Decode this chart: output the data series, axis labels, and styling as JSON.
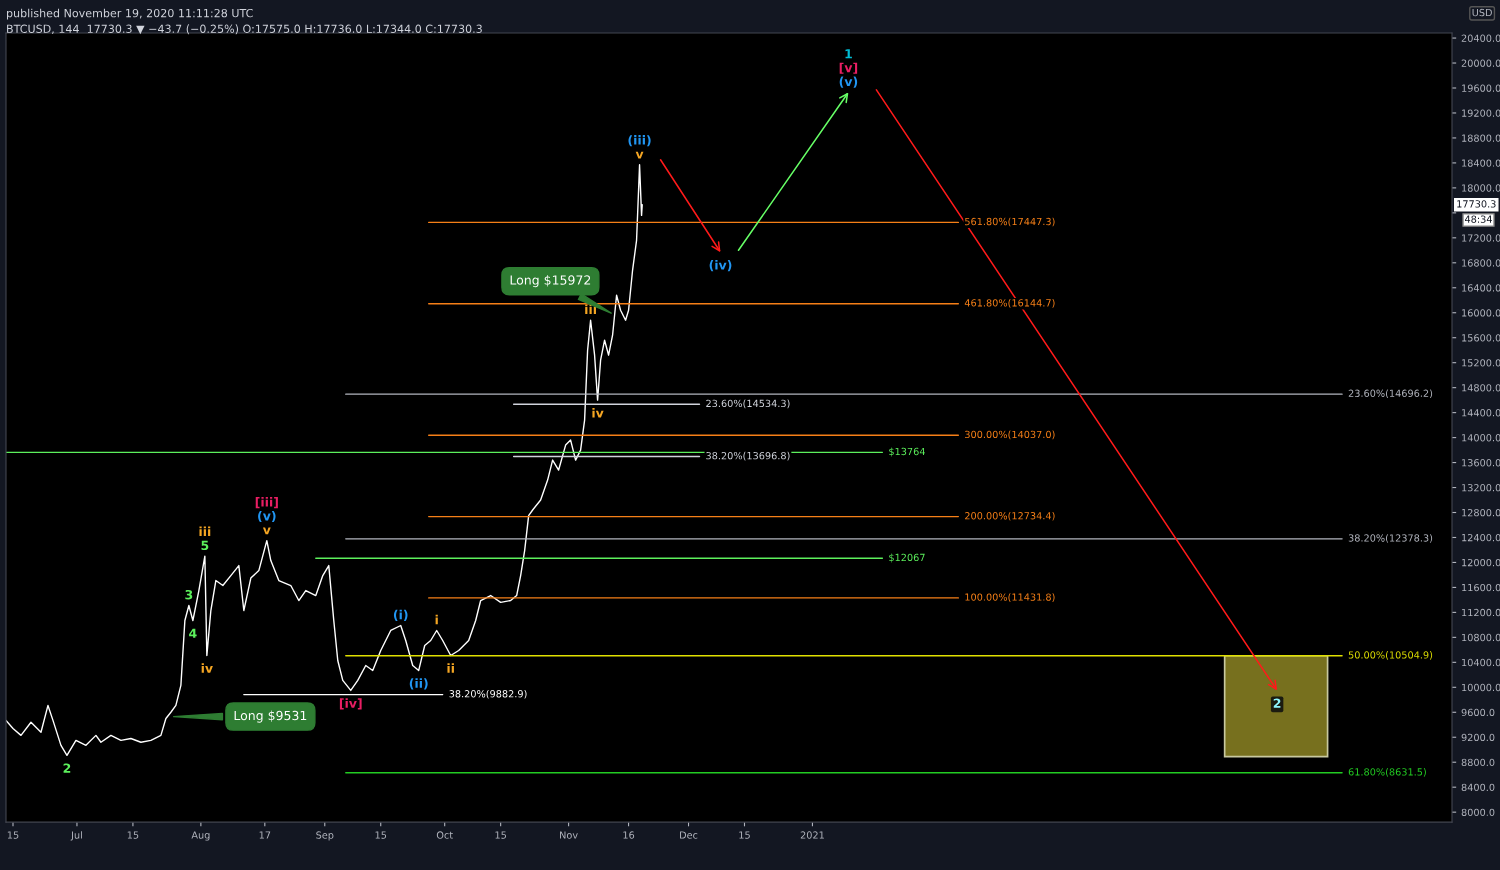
{
  "chart_data": {
    "type": "line",
    "title": "published November 19, 2020 11:11:28 UTC",
    "subtitle": "BTCUSD, 144  17730.3 ▼ −43.7 (−0.25%) O:17575.0 H:17736.0 L:17344.0 C:17730.3",
    "ylabel": "USD",
    "xlim": [
      "2020-06-13T06:00",
      "2021-06-10"
    ],
    "ylim": [
      7840,
      20480
    ],
    "xticks": [
      {
        "value": "2020-06-15",
        "label": "15"
      },
      {
        "value": "2020-07-01",
        "label": "Jul"
      },
      {
        "value": "2020-07-15",
        "label": "15"
      },
      {
        "value": "2020-08-01",
        "label": "Aug"
      },
      {
        "value": "2020-08-17",
        "label": "17"
      },
      {
        "value": "2020-09-01",
        "label": "Sep"
      },
      {
        "value": "2020-09-15",
        "label": "15"
      },
      {
        "value": "2020-10-01",
        "label": "Oct"
      },
      {
        "value": "2020-10-15",
        "label": "15"
      },
      {
        "value": "2020-11-01",
        "label": "Nov"
      },
      {
        "value": "2020-11-16",
        "label": "16"
      },
      {
        "value": "2020-12-01",
        "label": "Dec"
      },
      {
        "value": "2020-12-15",
        "label": "15"
      },
      {
        "value": "2021-01-01",
        "label": "2021"
      }
    ],
    "yticks": [
      {
        "value": 8000,
        "label": "8000.0"
      },
      {
        "value": 8400,
        "label": "8400.0"
      },
      {
        "value": 8800,
        "label": "8800.0"
      },
      {
        "value": 9200,
        "label": "9200.0"
      },
      {
        "value": 9600,
        "label": "9600.0"
      },
      {
        "value": 10000,
        "label": "10000.0"
      },
      {
        "value": 10400,
        "label": "10400.0"
      },
      {
        "value": 10800,
        "label": "10800.0"
      },
      {
        "value": 11200,
        "label": "11200.0"
      },
      {
        "value": 11600,
        "label": "11600.0"
      },
      {
        "value": 12000,
        "label": "12000.0"
      },
      {
        "value": 12400,
        "label": "12400.0"
      },
      {
        "value": 12800,
        "label": "12800.0"
      },
      {
        "value": 13200,
        "label": "13200.0"
      },
      {
        "value": 13600,
        "label": "13600.0"
      },
      {
        "value": 14000,
        "label": "14000.0"
      },
      {
        "value": 14400,
        "label": "14400.0"
      },
      {
        "value": 14800,
        "label": "14800.0"
      },
      {
        "value": 15200,
        "label": "15200.0"
      },
      {
        "value": 15600,
        "label": "15600.0"
      },
      {
        "value": 16000,
        "label": "16000.0"
      },
      {
        "value": 16400,
        "label": "16400.0"
      },
      {
        "value": 16800,
        "label": "16800.0"
      },
      {
        "value": 17200,
        "label": "17200.0"
      },
      {
        "value": 17600,
        "label": null
      },
      {
        "value": 18000,
        "label": "18000.0"
      },
      {
        "value": 18400,
        "label": "18400.0"
      },
      {
        "value": 18800,
        "label": "18800.0"
      },
      {
        "value": 19200,
        "label": "19200.0"
      },
      {
        "value": 19600,
        "label": "19600.0"
      },
      {
        "value": 20000,
        "label": "20000.0"
      },
      {
        "value": 20400,
        "label": "20400.0"
      }
    ],
    "grid": false,
    "legend": "right",
    "series": [
      {
        "color": "#ffffff",
        "x": [
          "2020-06-13T06:00",
          "2020-06-15",
          "2020-06-17",
          "2020-06-19T12:00",
          "2020-06-22",
          "2020-06-23T18:00",
          "2020-06-25",
          "2020-06-27",
          "2020-06-28T12:00",
          "2020-06-30T18:00",
          "2020-07-03T06:00",
          "2020-07-05T18:00",
          "2020-07-07",
          "2020-07-09T12:00",
          "2020-07-12",
          "2020-07-14T12:00",
          "2020-07-17",
          "2020-07-19T12:00",
          "2020-07-22",
          "2020-07-23T06:00",
          "2020-07-24T12:00",
          "2020-07-25T18:00",
          "2020-07-27",
          "2020-07-28",
          "2020-07-29",
          "2020-07-30",
          "2020-07-31T12:00",
          "2020-08-02",
          "2020-08-02T12:00",
          "2020-08-03T12:00",
          "2020-08-04T18:00",
          "2020-08-06T12:00",
          "2020-08-08T12:00",
          "2020-08-10T12:00",
          "2020-08-11T18:00",
          "2020-08-13T12:00",
          "2020-08-15T12:00",
          "2020-08-17T12:00",
          "2020-08-18T12:00",
          "2020-08-20T12:00",
          "2020-08-23T12:00",
          "2020-08-25T12:00",
          "2020-08-27T06:00",
          "2020-08-29T18:00",
          "2020-08-31T12:00",
          "2020-09-02",
          "2020-09-03T06:00",
          "2020-09-04T06:00",
          "2020-09-05T12:00",
          "2020-09-07T12:00",
          "2020-09-09T06:00",
          "2020-09-11T06:00",
          "2020-09-13",
          "2020-09-15",
          "2020-09-17T12:00",
          "2020-09-20",
          "2020-09-21T06:00",
          "2020-09-23",
          "2020-09-24T12:00",
          "2020-09-26",
          "2020-09-27T12:00",
          "2020-09-29",
          "2020-09-30T12:00",
          "2020-10-02T12:00",
          "2020-10-04T12:00",
          "2020-10-07",
          "2020-10-08T18:00",
          "2020-10-10",
          "2020-10-12T12:00",
          "2020-10-15",
          "2020-10-17T12:00",
          "2020-10-19",
          "2020-10-20",
          "2020-10-21",
          "2020-10-22",
          "2020-10-23",
          "2020-10-25",
          "2020-10-26T18:00",
          "2020-10-28",
          "2020-10-29T12:00",
          "2020-10-31T06:00",
          "2020-11-01T12:00",
          "2020-11-02T18:00",
          "2020-11-04",
          "2020-11-05",
          "2020-11-05T18:00",
          "2020-11-06T12:00",
          "2020-11-07T12:00",
          "2020-11-08T06:00",
          "2020-11-09",
          "2020-11-10",
          "2020-11-11",
          "2020-11-12",
          "2020-11-13",
          "2020-11-14",
          "2020-11-15T06:00",
          "2020-11-16",
          "2020-11-17",
          "2020-11-18",
          "2020-11-18T12:00",
          "2020-11-18T18:00",
          "2020-11-19T06:00",
          "2020-11-19T10:00"
        ],
        "values": [
          9470,
          9340,
          9230,
          9440,
          9280,
          9710,
          9470,
          9070,
          8910,
          9150,
          9070,
          9230,
          9120,
          9230,
          9150,
          9180,
          9120,
          9150,
          9230,
          9500,
          9600,
          9710,
          10030,
          11070,
          11310,
          11070,
          11550,
          12100,
          10510,
          11230,
          11710,
          11630,
          11790,
          11950,
          11230,
          11750,
          11870,
          12350,
          12030,
          11710,
          11630,
          11390,
          11550,
          11470,
          11790,
          11950,
          11070,
          10430,
          10110,
          9950,
          10110,
          10350,
          10270,
          10590,
          10910,
          10990,
          10750,
          10350,
          10270,
          10670,
          10750,
          10910,
          10750,
          10510,
          10590,
          10750,
          11070,
          11390,
          11470,
          11360,
          11390,
          11470,
          11790,
          12190,
          12750,
          12840,
          13000,
          13320,
          13640,
          13480,
          13880,
          13960,
          13640,
          13800,
          14280,
          15400,
          15880,
          15320,
          14600,
          15240,
          15560,
          15320,
          15640,
          16280,
          16040,
          15880,
          16040,
          16680,
          17160,
          17960,
          18370,
          17560,
          17730
        ]
      },
      {
        "name": "561.80%(17447.3)",
        "color": "#f57f17",
        "x": [
          "2020-09-27",
          "2021-02-06T12:00"
        ],
        "values": [
          17447.3,
          17447.3
        ]
      },
      {
        "name": "461.80%(16144.7)",
        "color": "#f57f17",
        "x": [
          "2020-09-27",
          "2021-02-06T12:00"
        ],
        "values": [
          16144.7,
          16144.7
        ]
      },
      {
        "name": "23.60%(14696.2)",
        "color": "#b2b5be",
        "x": [
          "2020-09-06T06:00",
          "2021-05-13T12:00"
        ],
        "values": [
          14696.2,
          14696.2
        ]
      },
      {
        "name": "23.60%(14534.3)",
        "color": "#d1d4dc",
        "x": [
          "2020-10-18T06:00",
          "2020-12-03T18:00"
        ],
        "values": [
          14534.3,
          14534.3
        ]
      },
      {
        "name": "300.00%(14037.0)",
        "color": "#f57f17",
        "x": [
          "2020-09-27",
          "2021-02-06T12:00"
        ],
        "values": [
          14037.0,
          14037.0
        ]
      },
      {
        "name": "38.20%(13696.8)",
        "color": "#d1d4dc",
        "x": [
          "2020-10-18T06:00",
          "2020-12-03T18:00"
        ],
        "values": [
          13696.8,
          13696.8
        ]
      },
      {
        "name": "200.00%(12734.4)",
        "color": "#f57f17",
        "x": [
          "2020-09-27",
          "2021-02-06T12:00"
        ],
        "values": [
          12734.4,
          12734.4
        ]
      },
      {
        "name": "38.20%(12378.3)",
        "color": "#b2b5be",
        "x": [
          "2020-09-06T06:00",
          "2021-05-13T12:00"
        ],
        "values": [
          12378.3,
          12378.3
        ]
      },
      {
        "name": "100.00%(11431.8)",
        "color": "#f57f17",
        "x": [
          "2020-09-27",
          "2021-02-06T12:00"
        ],
        "values": [
          11431.8,
          11431.8
        ]
      },
      {
        "name": "50.00%(10504.9)",
        "color": "#e0e000",
        "x": [
          "2020-09-06T06:00",
          "2021-05-13T12:00"
        ],
        "values": [
          10504.9,
          10504.9
        ]
      },
      {
        "name": "38.20%(9882.9)",
        "color": "#ffffff",
        "x": [
          "2020-08-11T18:00",
          "2020-09-30T12:00"
        ],
        "values": [
          9882.9,
          9882.9
        ]
      },
      {
        "name": "61.80%(8631.5)",
        "color": "#22cc22",
        "x": [
          "2020-09-06T06:00",
          "2021-05-13T12:00"
        ],
        "values": [
          8631.5,
          8631.5
        ]
      },
      {
        "name": "$13764",
        "color": "#5cf05c",
        "x": [
          "2020-06-13T06:00",
          "2021-01-18T12:00"
        ],
        "values": [
          13764,
          13764
        ]
      },
      {
        "name": "$12067",
        "color": "#5cf05c",
        "x": [
          "2020-08-29T18:00",
          "2021-01-18T12:00"
        ],
        "values": [
          12067,
          12067
        ]
      },
      {
        "type": "bar",
        "color": "#77701e",
        "x": [
          "2021-04-27"
        ],
        "values": [
          1614.9
        ],
        "base": [
          8890
        ]
      },
      {
        "color": "#ff1a1a",
        "x": [
          "2020-11-24",
          "2020-12-09"
        ],
        "values": [
          18450,
          16970
        ]
      },
      {
        "color": "#66ff66",
        "x": [
          "2020-12-13T12:00",
          "2021-01-10"
        ],
        "values": [
          17000,
          19530
        ]
      },
      {
        "color": "#ff1a1a",
        "x": [
          "2021-01-17",
          "2021-04-27T06:00"
        ],
        "values": [
          19570,
          9950
        ]
      }
    ],
    "annotations": [
      {
        "text": "2",
        "x": "2020-06-28T12:00",
        "y": 8910
      },
      {
        "text": "3",
        "x": "2020-07-29",
        "y": 11310
      },
      {
        "text": "4",
        "x": "2020-07-30",
        "y": 11070
      },
      {
        "text": "5",
        "x": "2020-08-02",
        "y": 12100
      },
      {
        "text": "iii",
        "x": "2020-08-02",
        "y": 12100
      },
      {
        "text": "iv",
        "x": "2020-08-02T12:00",
        "y": 10510
      },
      {
        "text": "v",
        "x": "2020-08-17T12:00",
        "y": 12350
      },
      {
        "text": "(v)",
        "x": "2020-08-17T12:00",
        "y": 12350
      },
      {
        "text": "[iii]",
        "x": "2020-08-17T12:00",
        "y": 12350
      },
      {
        "text": "[iv]",
        "x": "2020-09-07T12:00",
        "y": 9950
      },
      {
        "text": "(i)",
        "x": "2020-09-20",
        "y": 10990
      },
      {
        "text": "(ii)",
        "x": "2020-09-24T12:00",
        "y": 10270
      },
      {
        "text": "i",
        "x": "2020-09-29",
        "y": 10910
      },
      {
        "text": "ii",
        "x": "2020-10-02T12:00",
        "y": 10510
      },
      {
        "text": "iii",
        "x": "2020-11-06T12:00",
        "y": 15880
      },
      {
        "text": "iv",
        "x": "2020-11-08T06:00",
        "y": 14600
      },
      {
        "text": "v",
        "x": "2020-11-18T18:00",
        "y": 18370
      },
      {
        "text": "(iii)",
        "x": "2020-11-18T18:00",
        "y": 18370
      },
      {
        "text": "(iv)",
        "x": "2020-12-09",
        "y": 16970
      },
      {
        "text": "(v)",
        "x": "2021-01-10",
        "y": 19530
      },
      {
        "text": "[v]",
        "x": "2021-01-10",
        "y": 19530
      },
      {
        "text": "1",
        "x": "2021-01-10",
        "y": 19530
      },
      {
        "text": "2",
        "x": "2021-04-27T06:00",
        "y": 9950
      },
      {
        "text": "Long $9531",
        "x": "2020-07-24T12:00",
        "y": 9531
      },
      {
        "text": "Long $15972",
        "x": "2020-11-12T06:00",
        "y": 15972
      },
      "17730.3",
      "48:34"
    ]
  }
}
